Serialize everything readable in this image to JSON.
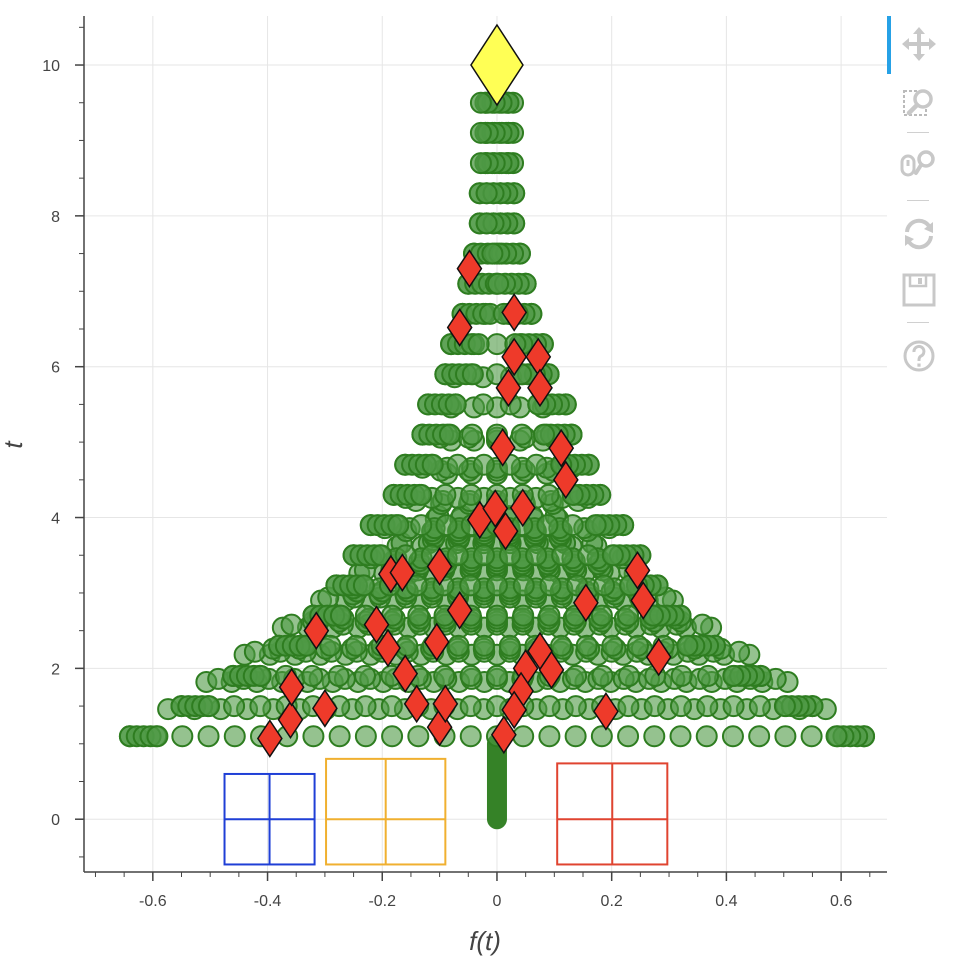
{
  "colors": {
    "tree_fill": "#4f9a45",
    "tree_edge": "#2e7d20",
    "tree_solid": "#358227",
    "ornament": "#ee3a2a",
    "star": "#ffff55",
    "gift_blue": "#1f3fd6",
    "gift_orange": "#f0b030",
    "gift_red": "#e04430",
    "grid": "#e6e6e6",
    "axis": "#444444"
  },
  "toolbar": {
    "tools": [
      {
        "name": "pan-tool",
        "icon": "move-arrows-icon",
        "active": true
      },
      {
        "name": "box-zoom-tool",
        "icon": "box-zoom-icon",
        "active": false
      },
      {
        "name": "wheel-zoom-tool",
        "icon": "wheel-zoom-icon",
        "active": false
      },
      {
        "name": "reset-tool",
        "icon": "reset-icon",
        "active": false
      },
      {
        "name": "save-tool",
        "icon": "save-icon",
        "active": false
      },
      {
        "name": "help-tool",
        "icon": "help-icon",
        "active": false
      }
    ]
  },
  "chart_data": {
    "type": "scatter",
    "xlabel": "f(t)",
    "ylabel": "t",
    "xlim": [
      -0.72,
      0.68
    ],
    "ylim": [
      -0.7,
      10.65
    ],
    "x_ticks": [
      -0.6,
      -0.4,
      -0.2,
      0,
      0.2,
      0.4,
      0.6
    ],
    "x_tick_labels": [
      "-0.6",
      "-0.4",
      "-0.2",
      "0",
      "0.2",
      "0.4",
      "0.6"
    ],
    "y_ticks": [
      0,
      2,
      4,
      6,
      8,
      10
    ],
    "y_tick_labels": [
      "0",
      "2",
      "4",
      "6",
      "8",
      "10"
    ],
    "grid": true,
    "tree": {
      "trunk": {
        "x": 0,
        "y_from": 0,
        "y_to": 1.0
      },
      "tiers": [
        {
          "y": 1.1,
          "half_width": 0.64
        },
        {
          "y": 1.5,
          "half_width": 0.55
        },
        {
          "y": 1.9,
          "half_width": 0.46
        },
        {
          "y": 2.3,
          "half_width": 0.38
        },
        {
          "y": 2.7,
          "half_width": 0.32
        },
        {
          "y": 3.1,
          "half_width": 0.28
        },
        {
          "y": 3.5,
          "half_width": 0.25
        },
        {
          "y": 3.9,
          "half_width": 0.22
        },
        {
          "y": 4.3,
          "half_width": 0.18
        },
        {
          "y": 4.7,
          "half_width": 0.16
        },
        {
          "y": 5.1,
          "half_width": 0.13
        },
        {
          "y": 5.5,
          "half_width": 0.12
        },
        {
          "y": 5.9,
          "half_width": 0.09
        },
        {
          "y": 6.3,
          "half_width": 0.08
        },
        {
          "y": 6.7,
          "half_width": 0.06
        },
        {
          "y": 7.1,
          "half_width": 0.05
        },
        {
          "y": 7.5,
          "half_width": 0.04
        },
        {
          "y": 7.9,
          "half_width": 0.03
        },
        {
          "y": 8.3,
          "half_width": 0.03
        },
        {
          "y": 8.7,
          "half_width": 0.02
        },
        {
          "y": 9.1,
          "half_width": 0.02
        },
        {
          "y": 9.5,
          "half_width": 0.02
        }
      ]
    },
    "ornaments": [
      [
        -0.396,
        1.07
      ],
      [
        -0.36,
        1.32
      ],
      [
        -0.358,
        1.75
      ],
      [
        -0.3,
        1.47
      ],
      [
        -0.315,
        2.5
      ],
      [
        -0.21,
        2.58
      ],
      [
        -0.19,
        2.27
      ],
      [
        -0.16,
        1.93
      ],
      [
        -0.14,
        1.53
      ],
      [
        -0.1,
        1.22
      ],
      [
        -0.09,
        1.53
      ],
      [
        -0.105,
        2.35
      ],
      [
        -0.185,
        3.25
      ],
      [
        -0.165,
        3.27
      ],
      [
        -0.1,
        3.35
      ],
      [
        -0.065,
        2.77
      ],
      [
        -0.03,
        3.97
      ],
      [
        -0.003,
        4.12
      ],
      [
        0.015,
        3.82
      ],
      [
        0.045,
        4.13
      ],
      [
        0.01,
        4.93
      ],
      [
        0.02,
        5.72
      ],
      [
        0.03,
        6.13
      ],
      [
        0.03,
        6.72
      ],
      [
        -0.048,
        7.3
      ],
      [
        -0.065,
        6.52
      ],
      [
        0.072,
        6.13
      ],
      [
        0.075,
        5.72
      ],
      [
        0.112,
        4.92
      ],
      [
        0.12,
        4.5
      ],
      [
        0.155,
        2.87
      ],
      [
        0.245,
        3.3
      ],
      [
        0.255,
        2.9
      ],
      [
        0.282,
        2.15
      ],
      [
        0.19,
        1.43
      ],
      [
        0.095,
        1.98
      ],
      [
        0.075,
        2.23
      ],
      [
        0.05,
        2.0
      ],
      [
        0.042,
        1.7
      ],
      [
        0.03,
        1.45
      ],
      [
        0.012,
        1.12
      ]
    ],
    "star": [
      0,
      10.0
    ],
    "gifts": [
      {
        "color": "blue",
        "x0": -0.475,
        "x1": -0.318,
        "y0": -0.6,
        "y1": 0.6
      },
      {
        "color": "orange",
        "x0": -0.298,
        "x1": -0.09,
        "y0": -0.6,
        "y1": 0.8
      },
      {
        "color": "red",
        "x0": 0.105,
        "x1": 0.297,
        "y0": -0.6,
        "y1": 0.74
      }
    ]
  }
}
